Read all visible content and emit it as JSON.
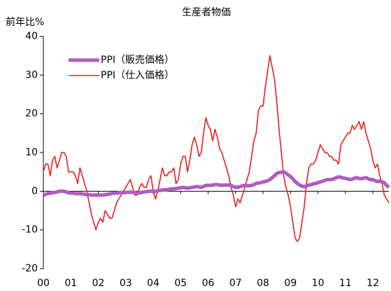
{
  "chart_data": {
    "type": "line",
    "title": "生産者物価",
    "y_label": "前年比%",
    "x": [
      0,
      1,
      2,
      3,
      4,
      5,
      6,
      7,
      8,
      9,
      10,
      11,
      12,
      13,
      14,
      15,
      16,
      17,
      18,
      19,
      20,
      21,
      22,
      23,
      24,
      25,
      26,
      27,
      28,
      29,
      30,
      31,
      32,
      33,
      34,
      35,
      36,
      37,
      38,
      39,
      40,
      41,
      42,
      43,
      44,
      45,
      46,
      47,
      48,
      49,
      50,
      51,
      52,
      53,
      54,
      55,
      56,
      57,
      58,
      59,
      60,
      61,
      62,
      63,
      64,
      65,
      66,
      67,
      68,
      69,
      70,
      71,
      72,
      73,
      74,
      75,
      76,
      77,
      78,
      79,
      80,
      81,
      82,
      83,
      84,
      85,
      86,
      87,
      88,
      89,
      90,
      91,
      92,
      93,
      94,
      95,
      96,
      97,
      98,
      99,
      100,
      101,
      102,
      103,
      104,
      105,
      106,
      107,
      108,
      109,
      110,
      111,
      112,
      113,
      114,
      115,
      116,
      117,
      118,
      119,
      120,
      121,
      122,
      123,
      124,
      125,
      126,
      127,
      128,
      129,
      130,
      131,
      132,
      133,
      134,
      135,
      136,
      137,
      138,
      139,
      140,
      141,
      142,
      143,
      144,
      145,
      146,
      147,
      148,
      149,
      150,
      151
    ],
    "xlim": [
      0,
      151
    ],
    "xticks": [
      {
        "value": 0,
        "label": "00"
      },
      {
        "value": 12,
        "label": "01"
      },
      {
        "value": 24,
        "label": "02"
      },
      {
        "value": 36,
        "label": "03"
      },
      {
        "value": 48,
        "label": "04"
      },
      {
        "value": 60,
        "label": "05"
      },
      {
        "value": 72,
        "label": "06"
      },
      {
        "value": 84,
        "label": "07"
      },
      {
        "value": 96,
        "label": "08"
      },
      {
        "value": 108,
        "label": "09"
      },
      {
        "value": 120,
        "label": "10"
      },
      {
        "value": 132,
        "label": "11"
      },
      {
        "value": 144,
        "label": "12"
      }
    ],
    "ylim": [
      -20,
      40
    ],
    "yticks": [
      -20,
      -10,
      0,
      10,
      20,
      30,
      40
    ],
    "legend": "upper left",
    "series": [
      {
        "name": "PPI（販売価格）",
        "color": "#b05cc0",
        "width": 5,
        "values": [
          -1,
          -0.8,
          -0.6,
          -0.5,
          -0.4,
          -0.3,
          -0.2,
          0,
          0,
          0,
          -0.2,
          -0.4,
          -0.5,
          -0.5,
          -0.6,
          -0.7,
          -0.6,
          -0.7,
          -0.8,
          -0.9,
          -0.9,
          -1,
          -1,
          -1,
          -1,
          -1,
          -1,
          -0.9,
          -0.8,
          -0.7,
          -0.6,
          -0.5,
          -0.5,
          -0.4,
          -0.4,
          -0.4,
          -0.3,
          -0.3,
          -0.2,
          -0.3,
          -0.4,
          -0.5,
          -0.4,
          -0.3,
          -0.2,
          -0.1,
          0,
          0,
          0,
          0,
          0.1,
          0.2,
          0.3,
          0.4,
          0.4,
          0.5,
          0.6,
          0.6,
          0.7,
          0.8,
          0.9,
          1,
          0.9,
          0.8,
          0.9,
          1,
          1.1,
          1.2,
          1.1,
          1,
          1.2,
          1.5,
          1.5,
          1.5,
          1.6,
          1.7,
          1.7,
          1.6,
          1.5,
          1.6,
          1.6,
          1.6,
          1.5,
          1.2,
          1,
          1,
          1.2,
          1.4,
          1.5,
          1.4,
          1.4,
          1.5,
          1.7,
          2,
          2.1,
          2.2,
          2.4,
          2.5,
          2.7,
          3,
          3.5,
          4,
          4.6,
          4.8,
          4.9,
          5,
          4.7,
          4.2,
          3.8,
          3.2,
          2.5,
          2,
          1.6,
          1.3,
          1.2,
          1.3,
          1.6,
          1.7,
          1.9,
          2,
          2.2,
          2.4,
          2.6,
          2.8,
          3,
          3,
          3,
          3.2,
          3.5,
          3.7,
          3.6,
          3.4,
          3.3,
          3.2,
          3,
          3.1,
          3.4,
          3.5,
          3.3,
          3.2,
          3.4,
          3.5,
          3.2,
          3,
          3,
          2.7,
          2.5,
          2.6,
          2.4,
          2.2,
          1.5,
          1
        ]
      },
      {
        "name": "PPI（仕入価格）",
        "color": "#e8201c",
        "width": 1.6,
        "values": [
          5,
          7,
          7,
          4,
          8,
          9,
          6,
          8,
          10,
          10,
          9,
          5,
          5,
          5,
          4,
          2,
          6,
          4,
          2,
          0,
          -3,
          -6,
          -8,
          -10,
          -8,
          -7,
          -8,
          -5,
          -6,
          -7,
          -7,
          -5,
          -3,
          -2,
          -1,
          0,
          1,
          2,
          3,
          1,
          -1,
          -1,
          1,
          2,
          1,
          1,
          3,
          4,
          0,
          -2,
          0,
          3,
          6,
          4,
          4,
          5,
          5,
          6,
          2,
          3,
          7,
          9,
          9,
          5,
          8,
          12,
          14,
          12,
          9,
          10,
          15,
          19,
          17,
          16,
          13,
          16,
          14,
          11,
          10,
          8,
          6,
          4,
          1,
          -1,
          -4,
          -2,
          -3,
          -1,
          1,
          3,
          5,
          9,
          13,
          15,
          21,
          22,
          22,
          27,
          31,
          35,
          32,
          29,
          23,
          16,
          10,
          4,
          1,
          -1,
          -4,
          -8,
          -12,
          -13,
          -12,
          -8,
          -4,
          2,
          6,
          7,
          7,
          8,
          10,
          12,
          11,
          10,
          10,
          9,
          9,
          8,
          8,
          7,
          12,
          13,
          14,
          15,
          15,
          17,
          16,
          17,
          18,
          16,
          18,
          15,
          13,
          11,
          8,
          6,
          7,
          4,
          2,
          -1,
          -2,
          -3
        ]
      }
    ]
  }
}
